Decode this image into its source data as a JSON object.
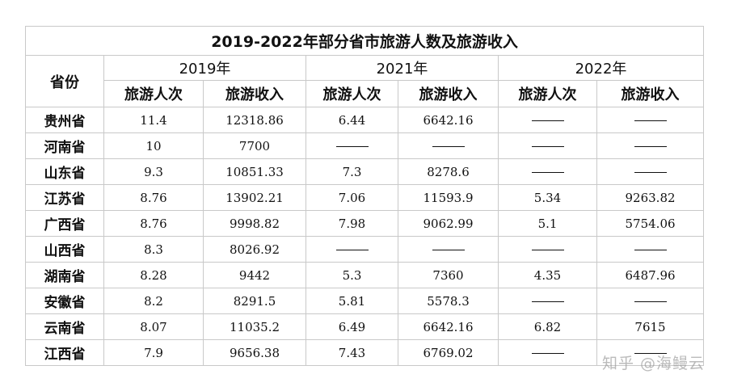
{
  "table": {
    "title": "2019-2022年部分省市旅游人数及旅游收入",
    "province_header": "省份",
    "years": [
      "2019年",
      "2021年",
      "2022年"
    ],
    "sub_headers": [
      "旅游人次",
      "旅游收入"
    ],
    "dash_symbol": "——",
    "rows": [
      {
        "province": "贵州省",
        "values": [
          "11.4",
          "12318.86",
          "6.44",
          "6642.16",
          "——",
          "——"
        ]
      },
      {
        "province": "河南省",
        "values": [
          "10",
          "7700",
          "——",
          "——",
          "——",
          "——"
        ]
      },
      {
        "province": "山东省",
        "values": [
          "9.3",
          "10851.33",
          "7.3",
          "8278.6",
          "——",
          "——"
        ]
      },
      {
        "province": "江苏省",
        "values": [
          "8.76",
          "13902.21",
          "7.06",
          "11593.9",
          "5.34",
          "9263.82"
        ]
      },
      {
        "province": "广西省",
        "values": [
          "8.76",
          "9998.82",
          "7.98",
          "9062.99",
          "5.1",
          "5754.06"
        ]
      },
      {
        "province": "山西省",
        "values": [
          "8.3",
          "8026.92",
          "——",
          "——",
          "——",
          "——"
        ]
      },
      {
        "province": "湖南省",
        "values": [
          "8.28",
          "9442",
          "5.3",
          "7360",
          "4.35",
          "6487.96"
        ]
      },
      {
        "province": "安徽省",
        "values": [
          "8.2",
          "8291.5",
          "5.81",
          "5578.3",
          "——",
          "——"
        ]
      },
      {
        "province": "云南省",
        "values": [
          "8.07",
          "11035.2",
          "6.49",
          "6642.16",
          "6.82",
          "7615"
        ]
      },
      {
        "province": "江西省",
        "values": [
          "7.9",
          "9656.38",
          "7.43",
          "6769.02",
          "——",
          "——"
        ]
      }
    ]
  },
  "watermark": "知乎 @海鳗云"
}
